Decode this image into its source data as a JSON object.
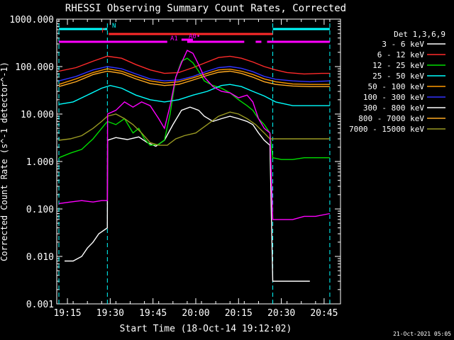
{
  "chart_data": {
    "type": "line",
    "title": "RHESSI Observing Summary Count Rates, Corrected",
    "xlabel": "Start Time (18-Oct-14 19:12:02)",
    "ylabel": "Corrected Count Rate (s^-1 detector^-1)",
    "x_unit": "minutes after 19:12:02",
    "xlim": [
      0,
      98
    ],
    "ylim": [
      0.001,
      1000
    ],
    "yscale": "log",
    "grid": false,
    "legend_placement": "right",
    "x_ticks": [
      "19:15",
      "19:30",
      "19:45",
      "20:00",
      "20:15",
      "20:30",
      "20:45"
    ],
    "y_ticks": [
      "0.001",
      "0.010",
      "0.100",
      "1.000",
      "10.000",
      "100.000",
      "1000.000"
    ],
    "legend_title": "Det 1,3,6,9",
    "footer_date": "21-Oct-2021 05:05",
    "series": [
      {
        "name": "3 - 6 keV",
        "color": "#ffffff",
        "points": [
          [
            2,
            0.008
          ],
          [
            5,
            0.008
          ],
          [
            8,
            0.01
          ],
          [
            10,
            0.015
          ],
          [
            12,
            0.02
          ],
          [
            14,
            0.03
          ],
          [
            17,
            0.04
          ],
          [
            17.1,
            2.8
          ],
          [
            20,
            3.2
          ],
          [
            24,
            2.9
          ],
          [
            28,
            3.3
          ],
          [
            31,
            2.5
          ],
          [
            34,
            2.1
          ],
          [
            37,
            2.8
          ],
          [
            40,
            6
          ],
          [
            43,
            12
          ],
          [
            46,
            14
          ],
          [
            49,
            12
          ],
          [
            51,
            9
          ],
          [
            54,
            7
          ],
          [
            57,
            8
          ],
          [
            60,
            9
          ],
          [
            63,
            8
          ],
          [
            66,
            7
          ],
          [
            68,
            6
          ],
          [
            70,
            4
          ],
          [
            72,
            2.8
          ],
          [
            74,
            2.2
          ],
          [
            75,
            0.003
          ],
          [
            78,
            0.003
          ],
          [
            82,
            0.003
          ],
          [
            86,
            0.003
          ],
          [
            88,
            0.003
          ]
        ]
      },
      {
        "name": "6 - 12 keV",
        "color": "#ff2a2a",
        "points": [
          [
            0,
            80
          ],
          [
            6,
            95
          ],
          [
            12,
            130
          ],
          [
            17,
            165
          ],
          [
            22,
            150
          ],
          [
            27,
            110
          ],
          [
            32,
            85
          ],
          [
            37,
            72
          ],
          [
            42,
            75
          ],
          [
            47,
            95
          ],
          [
            52,
            125
          ],
          [
            56,
            155
          ],
          [
            60,
            165
          ],
          [
            64,
            150
          ],
          [
            68,
            125
          ],
          [
            72,
            100
          ],
          [
            76,
            85
          ],
          [
            80,
            75
          ],
          [
            86,
            70
          ],
          [
            92,
            72
          ],
          [
            95,
            72
          ]
        ]
      },
      {
        "name": "12 - 25 keV",
        "color": "#00dd00",
        "points": [
          [
            0,
            1.2
          ],
          [
            4,
            1.5
          ],
          [
            8,
            1.8
          ],
          [
            12,
            3
          ],
          [
            15,
            5
          ],
          [
            17,
            7
          ],
          [
            20,
            6
          ],
          [
            23,
            8
          ],
          [
            26,
            4
          ],
          [
            28,
            5
          ],
          [
            30,
            3
          ],
          [
            32,
            2.2
          ],
          [
            35,
            2.3
          ],
          [
            37,
            2.8
          ],
          [
            39,
            10
          ],
          [
            41,
            60
          ],
          [
            43,
            130
          ],
          [
            45,
            150
          ],
          [
            47,
            120
          ],
          [
            49,
            80
          ],
          [
            51,
            50
          ],
          [
            54,
            40
          ],
          [
            57,
            35
          ],
          [
            60,
            28
          ],
          [
            63,
            20
          ],
          [
            66,
            15
          ],
          [
            68,
            12
          ],
          [
            70,
            8
          ],
          [
            72,
            6
          ],
          [
            74,
            4
          ],
          [
            75,
            1.2
          ],
          [
            78,
            1.1
          ],
          [
            82,
            1.1
          ],
          [
            86,
            1.2
          ],
          [
            90,
            1.2
          ],
          [
            95,
            1.2
          ]
        ]
      },
      {
        "name": "25 - 50 keV",
        "color": "#00ffff",
        "points": [
          [
            0,
            16
          ],
          [
            5,
            18
          ],
          [
            10,
            25
          ],
          [
            15,
            35
          ],
          [
            18,
            40
          ],
          [
            22,
            35
          ],
          [
            27,
            25
          ],
          [
            32,
            20
          ],
          [
            37,
            18
          ],
          [
            42,
            20
          ],
          [
            47,
            25
          ],
          [
            52,
            30
          ],
          [
            57,
            40
          ],
          [
            60,
            42
          ],
          [
            64,
            38
          ],
          [
            68,
            30
          ],
          [
            72,
            24
          ],
          [
            76,
            18
          ],
          [
            82,
            15
          ],
          [
            88,
            15
          ],
          [
            95,
            15
          ]
        ]
      },
      {
        "name": "50 - 100 keV",
        "color": "#ff9900",
        "points": [
          [
            0,
            42
          ],
          [
            6,
            55
          ],
          [
            12,
            75
          ],
          [
            17,
            90
          ],
          [
            22,
            80
          ],
          [
            27,
            62
          ],
          [
            32,
            50
          ],
          [
            37,
            45
          ],
          [
            42,
            48
          ],
          [
            47,
            58
          ],
          [
            52,
            72
          ],
          [
            56,
            85
          ],
          [
            60,
            88
          ],
          [
            64,
            80
          ],
          [
            68,
            68
          ],
          [
            72,
            55
          ],
          [
            76,
            48
          ],
          [
            82,
            43
          ],
          [
            88,
            42
          ],
          [
            95,
            42
          ]
        ]
      },
      {
        "name": "100 - 300 keV",
        "color": "#3333ff",
        "points": [
          [
            0,
            50
          ],
          [
            6,
            62
          ],
          [
            12,
            85
          ],
          [
            17,
            100
          ],
          [
            22,
            90
          ],
          [
            27,
            70
          ],
          [
            32,
            55
          ],
          [
            37,
            50
          ],
          [
            42,
            52
          ],
          [
            47,
            62
          ],
          [
            52,
            80
          ],
          [
            56,
            95
          ],
          [
            60,
            100
          ],
          [
            64,
            92
          ],
          [
            68,
            78
          ],
          [
            72,
            62
          ],
          [
            76,
            54
          ],
          [
            82,
            50
          ],
          [
            88,
            48
          ],
          [
            95,
            50
          ]
        ]
      },
      {
        "name": "300 - 800 keV",
        "color": "#ffffff",
        "points": []
      },
      {
        "name": "800 - 7000 keV",
        "color": "#ffaa22",
        "points": [
          [
            0,
            38
          ],
          [
            6,
            48
          ],
          [
            12,
            68
          ],
          [
            17,
            80
          ],
          [
            22,
            72
          ],
          [
            27,
            55
          ],
          [
            32,
            44
          ],
          [
            37,
            40
          ],
          [
            42,
            42
          ],
          [
            47,
            52
          ],
          [
            52,
            65
          ],
          [
            56,
            76
          ],
          [
            60,
            80
          ],
          [
            64,
            72
          ],
          [
            68,
            60
          ],
          [
            72,
            48
          ],
          [
            76,
            42
          ],
          [
            82,
            39
          ],
          [
            88,
            38
          ],
          [
            95,
            38
          ]
        ]
      },
      {
        "name": "7000 - 15000 keV",
        "color": "#999922",
        "points": [
          [
            0,
            2.8
          ],
          [
            4,
            3
          ],
          [
            8,
            3.5
          ],
          [
            12,
            5
          ],
          [
            15,
            7
          ],
          [
            17,
            9
          ],
          [
            20,
            10
          ],
          [
            23,
            8
          ],
          [
            26,
            6
          ],
          [
            29,
            4
          ],
          [
            32,
            2.5
          ],
          [
            35,
            2.2
          ],
          [
            38,
            2.2
          ],
          [
            41,
            3
          ],
          [
            44,
            3.5
          ],
          [
            48,
            4
          ],
          [
            52,
            6
          ],
          [
            56,
            9
          ],
          [
            60,
            11
          ],
          [
            63,
            10
          ],
          [
            66,
            8
          ],
          [
            69,
            6
          ],
          [
            72,
            4
          ],
          [
            74,
            3
          ],
          [
            75,
            3
          ],
          [
            78,
            3
          ],
          [
            82,
            3
          ],
          [
            86,
            3
          ],
          [
            90,
            3
          ],
          [
            95,
            3
          ]
        ]
      },
      {
        "name": "",
        "color": "#ff00ff",
        "points": [
          [
            0,
            0.13
          ],
          [
            4,
            0.14
          ],
          [
            8,
            0.15
          ],
          [
            12,
            0.14
          ],
          [
            15,
            0.15
          ],
          [
            17,
            0.15
          ],
          [
            17.1,
            10
          ],
          [
            20,
            12
          ],
          [
            23,
            18
          ],
          [
            26,
            14
          ],
          [
            29,
            18
          ],
          [
            32,
            15
          ],
          [
            35,
            8
          ],
          [
            37,
            5
          ],
          [
            39,
            15
          ],
          [
            41,
            60
          ],
          [
            43,
            120
          ],
          [
            45,
            220
          ],
          [
            47,
            190
          ],
          [
            49,
            110
          ],
          [
            51,
            60
          ],
          [
            54,
            38
          ],
          [
            57,
            30
          ],
          [
            60,
            28
          ],
          [
            63,
            22
          ],
          [
            66,
            25
          ],
          [
            68,
            18
          ],
          [
            70,
            8
          ],
          [
            72,
            5
          ],
          [
            74,
            4
          ],
          [
            75,
            0.06
          ],
          [
            78,
            0.06
          ],
          [
            82,
            0.06
          ],
          [
            86,
            0.07
          ],
          [
            90,
            0.07
          ],
          [
            95,
            0.08
          ]
        ]
      }
    ],
    "annotations": {
      "N": {
        "label": "N",
        "color": "#00ffff",
        "segments": [
          [
            0,
            17
          ],
          [
            75,
            95
          ]
        ]
      },
      "F": {
        "label": "F",
        "color": "#ff2a2a",
        "segments": [
          [
            17.5,
            75
          ]
        ]
      },
      "A0": {
        "label": "A0•",
        "color": "#ff00ff",
        "segments": [
          [
            43,
            47
          ]
        ]
      },
      "A1": {
        "label": "A1",
        "color": "#ff00ff",
        "segments": [
          [
            0,
            38
          ],
          [
            45,
            65
          ],
          [
            69,
            71
          ],
          [
            73,
            75
          ],
          [
            75,
            95
          ]
        ]
      }
    },
    "event_lines": [
      {
        "x": 0,
        "color": "#00ffff"
      },
      {
        "x": 17,
        "color": "#00ffff"
      },
      {
        "x": 75,
        "color": "#00ffff"
      },
      {
        "x": 95,
        "color": "#00ffff"
      }
    ]
  }
}
